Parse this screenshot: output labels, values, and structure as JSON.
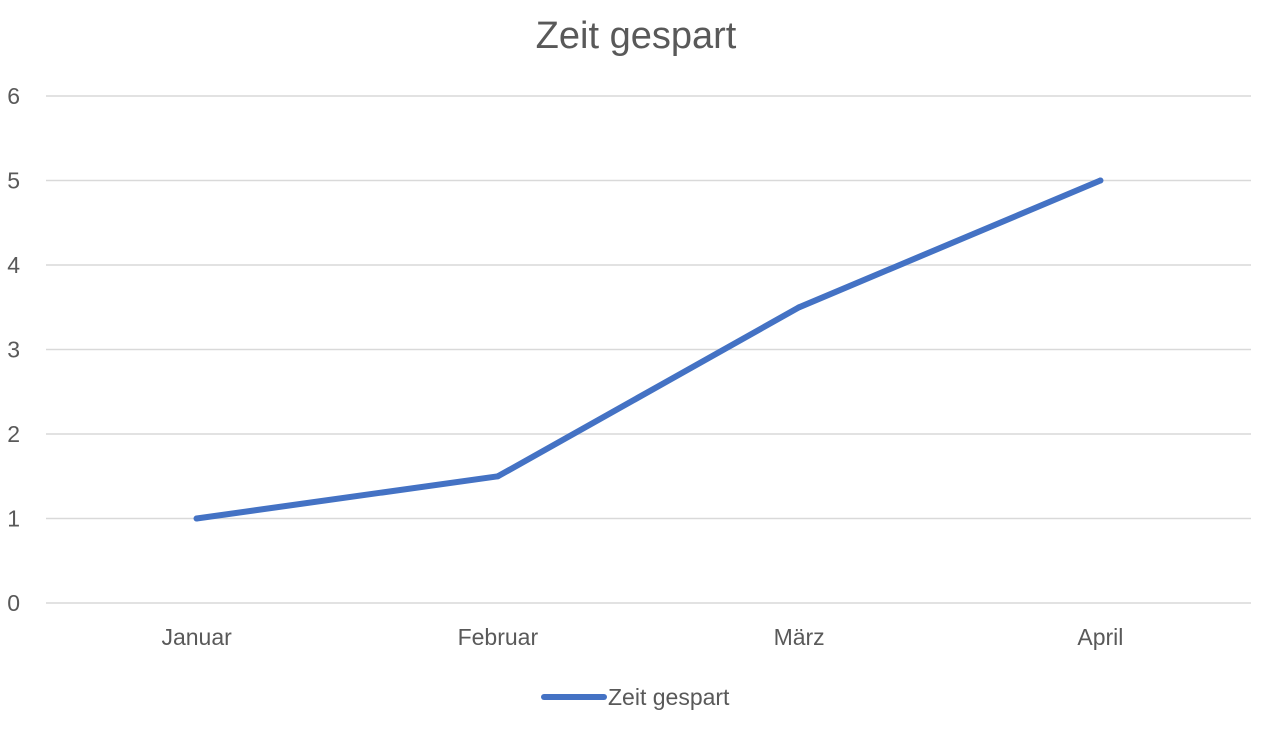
{
  "chart_data": {
    "type": "line",
    "title": "Zeit gespart",
    "xlabel": "",
    "ylabel": "",
    "categories": [
      "Januar",
      "Februar",
      "März",
      "April"
    ],
    "series": [
      {
        "name": "Zeit gespart",
        "values": [
          1,
          1.5,
          3.5,
          5
        ],
        "color": "#4472C4"
      }
    ],
    "ylim": [
      0,
      6
    ],
    "yticks": [
      0,
      1,
      2,
      3,
      4,
      5,
      6
    ],
    "grid": true,
    "legend": "bottom"
  }
}
